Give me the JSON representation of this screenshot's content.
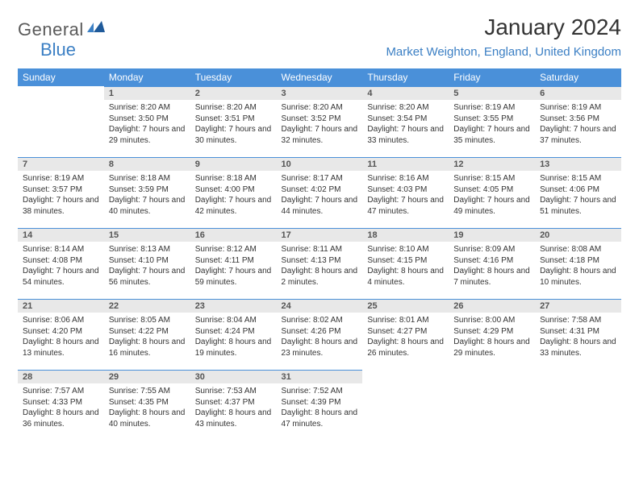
{
  "logo": {
    "part1": "General",
    "part2": "Blue"
  },
  "title": "January 2024",
  "location": "Market Weighton, England, United Kingdom",
  "weekdays": [
    "Sunday",
    "Monday",
    "Tuesday",
    "Wednesday",
    "Thursday",
    "Friday",
    "Saturday"
  ],
  "colors": {
    "header_bg": "#4a90d9",
    "header_text": "#ffffff",
    "daynum_bg": "#e8e8e8",
    "daynum_text": "#555555",
    "row_border": "#4a90d9",
    "location_color": "#3b7fc4",
    "body_text": "#333333",
    "logo_gray": "#5a5a5a",
    "logo_blue": "#3b7fc4"
  },
  "grid": [
    [
      null,
      {
        "n": "1",
        "sr": "8:20 AM",
        "ss": "3:50 PM",
        "dl": "7 hours and 29 minutes."
      },
      {
        "n": "2",
        "sr": "8:20 AM",
        "ss": "3:51 PM",
        "dl": "7 hours and 30 minutes."
      },
      {
        "n": "3",
        "sr": "8:20 AM",
        "ss": "3:52 PM",
        "dl": "7 hours and 32 minutes."
      },
      {
        "n": "4",
        "sr": "8:20 AM",
        "ss": "3:54 PM",
        "dl": "7 hours and 33 minutes."
      },
      {
        "n": "5",
        "sr": "8:19 AM",
        "ss": "3:55 PM",
        "dl": "7 hours and 35 minutes."
      },
      {
        "n": "6",
        "sr": "8:19 AM",
        "ss": "3:56 PM",
        "dl": "7 hours and 37 minutes."
      }
    ],
    [
      {
        "n": "7",
        "sr": "8:19 AM",
        "ss": "3:57 PM",
        "dl": "7 hours and 38 minutes."
      },
      {
        "n": "8",
        "sr": "8:18 AM",
        "ss": "3:59 PM",
        "dl": "7 hours and 40 minutes."
      },
      {
        "n": "9",
        "sr": "8:18 AM",
        "ss": "4:00 PM",
        "dl": "7 hours and 42 minutes."
      },
      {
        "n": "10",
        "sr": "8:17 AM",
        "ss": "4:02 PM",
        "dl": "7 hours and 44 minutes."
      },
      {
        "n": "11",
        "sr": "8:16 AM",
        "ss": "4:03 PM",
        "dl": "7 hours and 47 minutes."
      },
      {
        "n": "12",
        "sr": "8:15 AM",
        "ss": "4:05 PM",
        "dl": "7 hours and 49 minutes."
      },
      {
        "n": "13",
        "sr": "8:15 AM",
        "ss": "4:06 PM",
        "dl": "7 hours and 51 minutes."
      }
    ],
    [
      {
        "n": "14",
        "sr": "8:14 AM",
        "ss": "4:08 PM",
        "dl": "7 hours and 54 minutes."
      },
      {
        "n": "15",
        "sr": "8:13 AM",
        "ss": "4:10 PM",
        "dl": "7 hours and 56 minutes."
      },
      {
        "n": "16",
        "sr": "8:12 AM",
        "ss": "4:11 PM",
        "dl": "7 hours and 59 minutes."
      },
      {
        "n": "17",
        "sr": "8:11 AM",
        "ss": "4:13 PM",
        "dl": "8 hours and 2 minutes."
      },
      {
        "n": "18",
        "sr": "8:10 AM",
        "ss": "4:15 PM",
        "dl": "8 hours and 4 minutes."
      },
      {
        "n": "19",
        "sr": "8:09 AM",
        "ss": "4:16 PM",
        "dl": "8 hours and 7 minutes."
      },
      {
        "n": "20",
        "sr": "8:08 AM",
        "ss": "4:18 PM",
        "dl": "8 hours and 10 minutes."
      }
    ],
    [
      {
        "n": "21",
        "sr": "8:06 AM",
        "ss": "4:20 PM",
        "dl": "8 hours and 13 minutes."
      },
      {
        "n": "22",
        "sr": "8:05 AM",
        "ss": "4:22 PM",
        "dl": "8 hours and 16 minutes."
      },
      {
        "n": "23",
        "sr": "8:04 AM",
        "ss": "4:24 PM",
        "dl": "8 hours and 19 minutes."
      },
      {
        "n": "24",
        "sr": "8:02 AM",
        "ss": "4:26 PM",
        "dl": "8 hours and 23 minutes."
      },
      {
        "n": "25",
        "sr": "8:01 AM",
        "ss": "4:27 PM",
        "dl": "8 hours and 26 minutes."
      },
      {
        "n": "26",
        "sr": "8:00 AM",
        "ss": "4:29 PM",
        "dl": "8 hours and 29 minutes."
      },
      {
        "n": "27",
        "sr": "7:58 AM",
        "ss": "4:31 PM",
        "dl": "8 hours and 33 minutes."
      }
    ],
    [
      {
        "n": "28",
        "sr": "7:57 AM",
        "ss": "4:33 PM",
        "dl": "8 hours and 36 minutes."
      },
      {
        "n": "29",
        "sr": "7:55 AM",
        "ss": "4:35 PM",
        "dl": "8 hours and 40 minutes."
      },
      {
        "n": "30",
        "sr": "7:53 AM",
        "ss": "4:37 PM",
        "dl": "8 hours and 43 minutes."
      },
      {
        "n": "31",
        "sr": "7:52 AM",
        "ss": "4:39 PM",
        "dl": "8 hours and 47 minutes."
      },
      null,
      null,
      null
    ]
  ],
  "labels": {
    "sunrise": "Sunrise:",
    "sunset": "Sunset:",
    "daylight": "Daylight:"
  }
}
